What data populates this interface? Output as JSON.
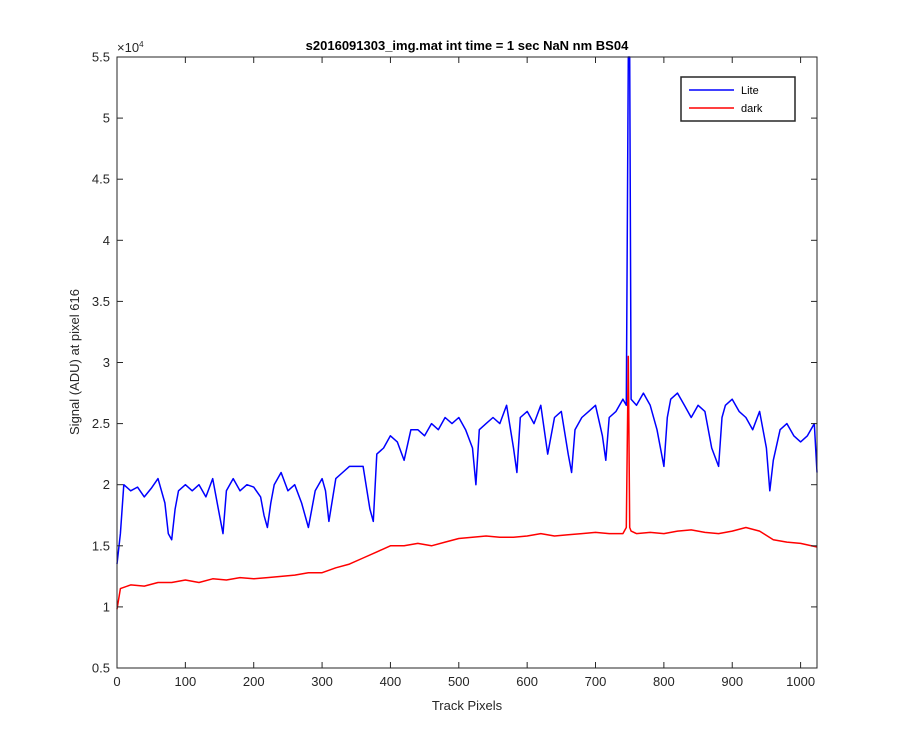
{
  "chart_data": {
    "type": "line",
    "title": "s2016091303_img.mat int time = 1 sec  NaN nm BS04",
    "xlabel": "Track Pixels",
    "ylabel": "Signal (ADU) at pixel 616",
    "exponent_label": "×10",
    "exponent_power": "4",
    "xlim": [
      0,
      1024
    ],
    "ylim": [
      5000,
      55000
    ],
    "xticks": [
      0,
      100,
      200,
      300,
      400,
      500,
      600,
      700,
      800,
      900,
      1000
    ],
    "xtick_labels": [
      "0",
      "100",
      "200",
      "300",
      "400",
      "500",
      "600",
      "700",
      "800",
      "900",
      "1000"
    ],
    "yticks": [
      5000,
      10000,
      15000,
      20000,
      25000,
      30000,
      35000,
      40000,
      45000,
      50000,
      55000
    ],
    "ytick_labels": [
      "0.5",
      "1",
      "1.5",
      "2",
      "2.5",
      "3",
      "3.5",
      "4",
      "4.5",
      "5",
      "5.5"
    ],
    "grid": false,
    "legend_position": "top-right",
    "series": [
      {
        "name": "Lite",
        "color": "#0000ff",
        "x": [
          0,
          5,
          10,
          20,
          30,
          40,
          50,
          60,
          70,
          75,
          80,
          85,
          90,
          100,
          110,
          120,
          130,
          140,
          150,
          155,
          160,
          170,
          180,
          190,
          200,
          210,
          215,
          220,
          225,
          230,
          240,
          250,
          260,
          270,
          280,
          290,
          300,
          305,
          310,
          320,
          330,
          340,
          350,
          360,
          370,
          375,
          380,
          390,
          400,
          410,
          420,
          430,
          440,
          450,
          460,
          470,
          480,
          490,
          500,
          510,
          520,
          525,
          530,
          540,
          550,
          560,
          570,
          580,
          585,
          590,
          600,
          610,
          620,
          630,
          640,
          650,
          660,
          665,
          670,
          680,
          690,
          700,
          710,
          715,
          720,
          730,
          740,
          745,
          748,
          750,
          752,
          760,
          770,
          780,
          790,
          800,
          805,
          810,
          820,
          830,
          840,
          850,
          860,
          870,
          880,
          885,
          890,
          900,
          910,
          920,
          930,
          940,
          950,
          955,
          960,
          970,
          980,
          990,
          1000,
          1010,
          1020,
          1024
        ],
        "y": [
          13500,
          16000,
          20000,
          19500,
          19800,
          19000,
          19700,
          20500,
          18500,
          16000,
          15500,
          18000,
          19500,
          20000,
          19500,
          20000,
          19000,
          20500,
          17500,
          16000,
          19500,
          20500,
          19500,
          20000,
          19800,
          19000,
          17500,
          16500,
          18500,
          20000,
          21000,
          19500,
          20000,
          18500,
          16500,
          19500,
          20500,
          19500,
          17000,
          20500,
          21000,
          21500,
          21500,
          21500,
          18000,
          17000,
          22500,
          23000,
          24000,
          23500,
          22000,
          24500,
          24500,
          24000,
          25000,
          24500,
          25500,
          25000,
          25500,
          24500,
          23000,
          20000,
          24500,
          25000,
          25500,
          25000,
          26500,
          23000,
          21000,
          25500,
          26000,
          25000,
          26500,
          22500,
          25500,
          26000,
          22500,
          21000,
          24500,
          25500,
          26000,
          26500,
          24000,
          22000,
          25500,
          26000,
          27000,
          26500,
          55000,
          55000,
          27000,
          26500,
          27500,
          26500,
          24500,
          21500,
          25500,
          27000,
          27500,
          26500,
          25500,
          26500,
          26000,
          23000,
          21500,
          25500,
          26500,
          27000,
          26000,
          25500,
          24500,
          26000,
          23000,
          19500,
          22000,
          24500,
          25000,
          24000,
          23500,
          24000,
          25000,
          21000
        ]
      },
      {
        "name": "dark",
        "color": "#ff0000",
        "x": [
          0,
          5,
          20,
          40,
          60,
          80,
          100,
          120,
          140,
          160,
          180,
          200,
          220,
          240,
          260,
          280,
          300,
          320,
          340,
          360,
          380,
          400,
          420,
          440,
          460,
          480,
          500,
          520,
          540,
          560,
          580,
          600,
          620,
          640,
          660,
          680,
          700,
          720,
          740,
          745,
          748,
          750,
          752,
          760,
          780,
          800,
          820,
          840,
          860,
          880,
          900,
          920,
          940,
          960,
          980,
          1000,
          1024
        ],
        "y": [
          9800,
          11500,
          11800,
          11700,
          12000,
          12000,
          12200,
          12000,
          12300,
          12200,
          12400,
          12300,
          12400,
          12500,
          12600,
          12800,
          12800,
          13200,
          13500,
          14000,
          14500,
          15000,
          15000,
          15200,
          15000,
          15300,
          15600,
          15700,
          15800,
          15700,
          15700,
          15800,
          16000,
          15800,
          15900,
          16000,
          16100,
          16000,
          16000,
          16500,
          30500,
          16500,
          16200,
          16000,
          16100,
          16000,
          16200,
          16300,
          16100,
          16000,
          16200,
          16500,
          16200,
          15500,
          15300,
          15200,
          14900
        ]
      }
    ]
  }
}
